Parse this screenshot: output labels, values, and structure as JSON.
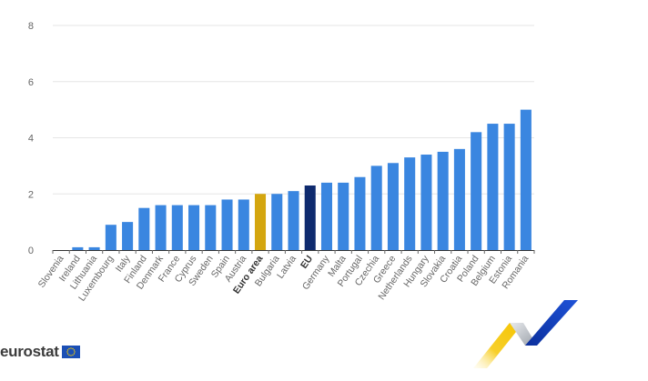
{
  "chart_data": {
    "type": "bar",
    "title": "",
    "xlabel": "",
    "ylabel": "",
    "ylim": [
      0,
      8
    ],
    "yticks": [
      0,
      2,
      4,
      6,
      8
    ],
    "grid": true,
    "legend": null,
    "categories": [
      "Slovenia",
      "Ireland",
      "Lithuania",
      "Luxembourg",
      "Italy",
      "Finland",
      "Denmark",
      "France",
      "Cyprus",
      "Sweden",
      "Spain",
      "Austria",
      "Euro area",
      "Bulgaria",
      "Latvia",
      "EU",
      "Germany",
      "Malta",
      "Portugal",
      "Czechia",
      "Greece",
      "Netherlands",
      "Hungary",
      "Slovakia",
      "Croatia",
      "Poland",
      "Belgium",
      "Estonia",
      "Romania"
    ],
    "values": [
      0.0,
      0.1,
      0.1,
      0.9,
      1.0,
      1.5,
      1.6,
      1.6,
      1.6,
      1.6,
      1.8,
      1.8,
      2.0,
      2.0,
      2.1,
      2.3,
      2.4,
      2.4,
      2.6,
      3.0,
      3.1,
      3.3,
      3.4,
      3.5,
      3.6,
      4.2,
      4.5,
      4.5,
      5.0
    ],
    "highlighted": {
      "Euro area": "#d4a60f",
      "EU": "#0e2a6e"
    },
    "bold_labels": [
      "Euro area",
      "EU"
    ]
  },
  "colors": {
    "bar_default": "#3a86e0",
    "bar_euro_area": "#d4a60f",
    "bar_eu": "#0e2a6e",
    "grid": "#e6e6e6",
    "axis": "#333333",
    "label": "#666666"
  },
  "branding": {
    "logo_text": "eurostat",
    "flag_icon": "eu-flag-icon"
  }
}
